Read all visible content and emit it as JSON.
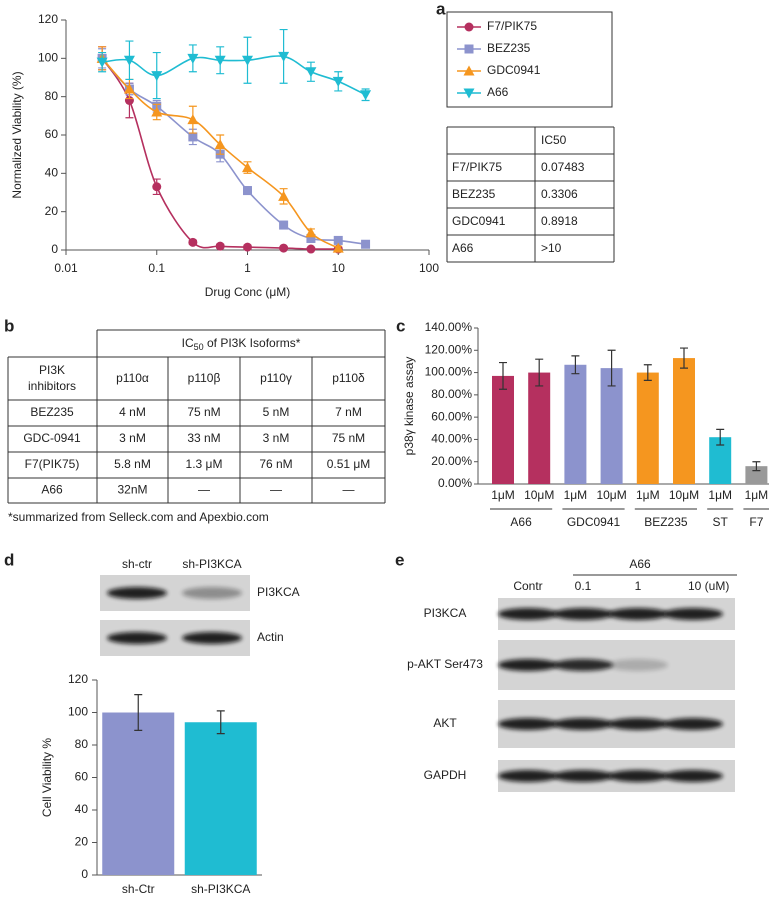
{
  "panel_labels": [
    "a",
    "b",
    "c",
    "d",
    "e"
  ],
  "chart_data": [
    {
      "type": "line",
      "xscale": "log",
      "xlabel": "Drug Conc (μM)",
      "ylabel": "Normalized Viability (%)",
      "xlim": [
        0.01,
        100
      ],
      "xticks": [
        0.01,
        0.1,
        1,
        10,
        100
      ],
      "ylim": [
        0,
        120
      ],
      "yticks": [
        0,
        20,
        40,
        60,
        80,
        100,
        120
      ],
      "series": [
        {
          "name": "F7/PIK75",
          "color": "#b5305f",
          "marker": "circle",
          "x": [
            0.025,
            0.05,
            0.1,
            0.25,
            0.5,
            1,
            2.5,
            5,
            10
          ],
          "values": [
            100,
            78,
            33,
            4,
            2,
            1.5,
            1,
            0.5,
            0.5
          ],
          "errors": [
            6,
            9,
            4,
            1,
            1,
            1,
            0.5,
            0.5,
            0.5
          ]
        },
        {
          "name": "BEZ235",
          "color": "#8c93cd",
          "marker": "square",
          "x": [
            0.025,
            0.05,
            0.1,
            0.25,
            0.5,
            1,
            2.5,
            5,
            10,
            20
          ],
          "values": [
            100,
            84,
            75,
            59,
            50,
            31,
            13,
            6,
            5,
            3
          ],
          "errors": [
            5,
            3,
            3,
            4,
            4,
            2,
            2,
            1,
            1,
            1
          ]
        },
        {
          "name": "GDC0941",
          "color": "#f5961f",
          "marker": "triangle",
          "x": [
            0.025,
            0.05,
            0.1,
            0.25,
            0.5,
            1,
            2.5,
            5,
            10
          ],
          "values": [
            100,
            84,
            72,
            68,
            55,
            43,
            28,
            9,
            1
          ],
          "errors": [
            6,
            5,
            4,
            7,
            5,
            3,
            4,
            2,
            1
          ]
        },
        {
          "name": "A66",
          "color": "#1fbcd2",
          "marker": "triangle-down",
          "x": [
            0.025,
            0.05,
            0.1,
            0.25,
            0.5,
            1,
            2.5,
            5,
            10,
            20
          ],
          "values": [
            98,
            99,
            91,
            100,
            99,
            99,
            101,
            93,
            88,
            81
          ],
          "errors": [
            5,
            10,
            12,
            7,
            7,
            12,
            14,
            5,
            5,
            3
          ]
        }
      ]
    },
    {
      "type": "bar",
      "ylabel": "p38γ kinase assay",
      "ylim": [
        0,
        140
      ],
      "yticks": [
        {
          "value": 0,
          "label": "0.00%"
        },
        {
          "value": 20,
          "label": "20.00%"
        },
        {
          "value": 40,
          "label": "40.00%"
        },
        {
          "value": 60,
          "label": "60.00%"
        },
        {
          "value": 80,
          "label": "80.00%"
        },
        {
          "value": 100,
          "label": "100.00%"
        },
        {
          "value": 120,
          "label": "120.00%"
        },
        {
          "value": 140,
          "label": "140.00%"
        }
      ],
      "groups": [
        {
          "name": "A66",
          "color": "#b5305f",
          "categories": [
            "1μM",
            "10μM"
          ],
          "values": [
            97,
            100
          ],
          "errors": [
            12,
            12
          ]
        },
        {
          "name": "GDC0941",
          "color": "#8c93cd",
          "categories": [
            "1μM",
            "10μM"
          ],
          "values": [
            107,
            104
          ],
          "errors": [
            8,
            16
          ]
        },
        {
          "name": "BEZ235",
          "color": "#f5961f",
          "categories": [
            "1μM",
            "10μM"
          ],
          "values": [
            100,
            113
          ],
          "errors": [
            7,
            9
          ]
        },
        {
          "name": "ST",
          "color": "#1fbcd2",
          "categories": [
            "1μM"
          ],
          "values": [
            42
          ],
          "errors": [
            7
          ]
        },
        {
          "name": "F7",
          "color": "#999999",
          "categories": [
            "1μM"
          ],
          "values": [
            16
          ],
          "errors": [
            4
          ]
        }
      ]
    },
    {
      "type": "bar",
      "ylabel": "Cell Viability %",
      "ylim": [
        0,
        120
      ],
      "yticks": [
        0,
        20,
        40,
        60,
        80,
        100,
        120
      ],
      "categories": [
        "sh-Ctr",
        "sh-PI3KCA"
      ],
      "values": [
        100,
        94
      ],
      "errors": [
        11,
        7
      ],
      "colors": [
        "#8c93cd",
        "#1fbcd2"
      ]
    }
  ],
  "ic50_table": {
    "header": "IC50",
    "rows": [
      [
        "F7/PIK75",
        "0.07483"
      ],
      [
        "BEZ235",
        "0.3306"
      ],
      [
        "GDC0941",
        "0.8918"
      ],
      [
        "A66",
        ">10"
      ]
    ]
  },
  "isoform_table": {
    "title": "IC",
    "title_sub": "50",
    "title_rest": " of PI3K Isoforms*",
    "row_header": [
      "PI3K",
      "inhibitors"
    ],
    "columns": [
      "p110α",
      "p110β",
      "p110γ",
      "p110δ"
    ],
    "rows": [
      {
        "name": "BEZ235",
        "cells": [
          "4 nM",
          "75 nM",
          "5 nM",
          "7 nM"
        ]
      },
      {
        "name": "GDC-0941",
        "cells": [
          "3 nM",
          "33 nM",
          "3 nM",
          "75 nM"
        ]
      },
      {
        "name": "F7(PIK75)",
        "cells": [
          "5.8 nM",
          "1.3 μM",
          "76 nM",
          "0.51 μM"
        ]
      },
      {
        "name": "A66",
        "cells": [
          "32nM",
          "—",
          "—",
          "—"
        ]
      }
    ],
    "footnote": "*summarized from Selleck.com and Apexbio.com"
  },
  "blot_d": {
    "lanes": [
      "sh-ctr",
      "sh-PI3KCA"
    ],
    "bands": [
      "PI3KCA",
      "Actin"
    ]
  },
  "blot_e": {
    "treatment": "A66",
    "lanes": [
      "Contr",
      "0.1",
      "1",
      "10 (uM)"
    ],
    "bands": [
      "PI3KCA",
      "p-AKT Ser473",
      "AKT",
      "GAPDH"
    ]
  }
}
